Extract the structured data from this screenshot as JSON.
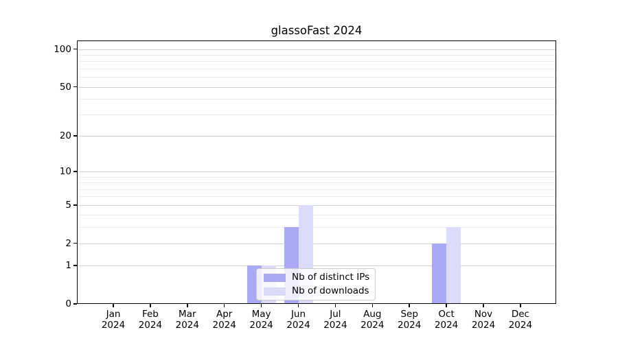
{
  "chart_data": {
    "type": "bar",
    "title": "glassoFast 2024",
    "categories": [
      "Jan 2024",
      "Feb 2024",
      "Mar 2024",
      "Apr 2024",
      "May 2024",
      "Jun 2024",
      "Jul 2024",
      "Aug 2024",
      "Sep 2024",
      "Oct 2024",
      "Nov 2024",
      "Dec 2024"
    ],
    "series": [
      {
        "name": "Nb of distinct IPs",
        "color": "#a9a9f6",
        "values": [
          0,
          0,
          0,
          0,
          1,
          3,
          0,
          0,
          0,
          2,
          0,
          0
        ]
      },
      {
        "name": "Nb of downloads",
        "color": "#dcdcf9",
        "values": [
          0,
          0,
          0,
          0,
          1,
          5,
          0,
          0,
          0,
          3,
          0,
          0
        ]
      }
    ],
    "yscale": "log1p",
    "ylim": [
      0,
      117
    ],
    "yticks": [
      0,
      1,
      2,
      5,
      10,
      20,
      50,
      100
    ],
    "minor_gridlines": [
      3,
      4,
      6,
      7,
      8,
      9,
      30,
      40,
      60,
      70,
      80,
      90
    ],
    "grid": true,
    "legend_position": "lower center",
    "colors": {
      "major_grid": "#d0d0d0",
      "minor_grid": "#ebebeb",
      "axis": "#000000"
    }
  }
}
